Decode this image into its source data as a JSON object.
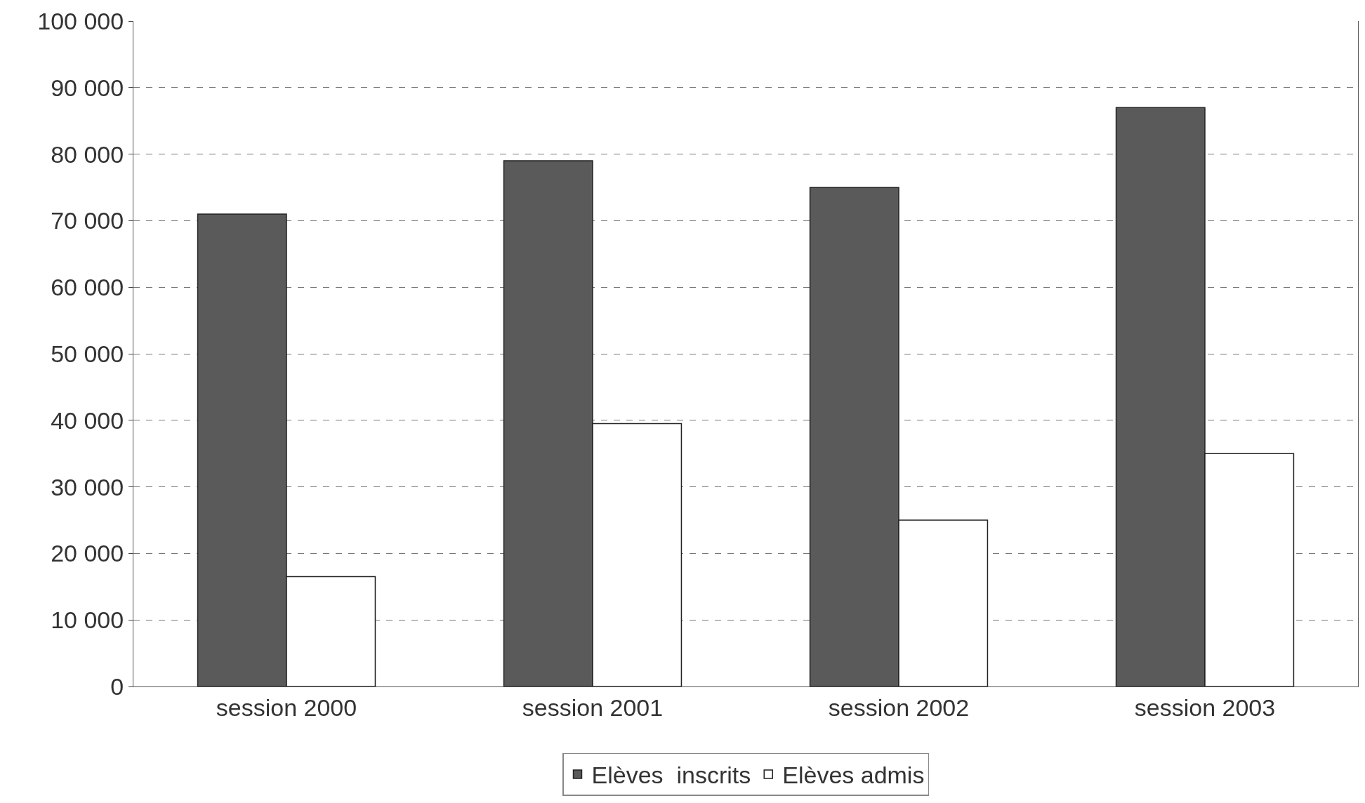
{
  "chart_data": {
    "type": "bar",
    "categories": [
      "session 2000",
      "session 2001",
      "session 2002",
      "session 2003"
    ],
    "series": [
      {
        "name": "Elèves  inscrits",
        "color": "#5a5a5a",
        "values": [
          71000,
          79000,
          75000,
          87000
        ]
      },
      {
        "name": "Elèves admis",
        "color": "#ffffff",
        "values": [
          16500,
          39500,
          25000,
          35000
        ]
      }
    ],
    "ylim": [
      0,
      100000
    ],
    "yticks": [
      0,
      {
        "value": 10000,
        "label": "10 000"
      },
      {
        "value": 20000,
        "label": "20 000"
      },
      {
        "value": 30000,
        "label": "30 000"
      },
      {
        "value": 40000,
        "label": "40 000"
      },
      {
        "value": 50000,
        "label": "50 000"
      },
      {
        "value": 60000,
        "label": "60 000"
      },
      {
        "value": 70000,
        "label": "70 000"
      },
      {
        "value": 80000,
        "label": "80 000"
      },
      {
        "value": 90000,
        "label": "90 000"
      },
      {
        "value": 100000,
        "label": "100 000"
      }
    ],
    "grid": "y",
    "legend": "bottom"
  }
}
